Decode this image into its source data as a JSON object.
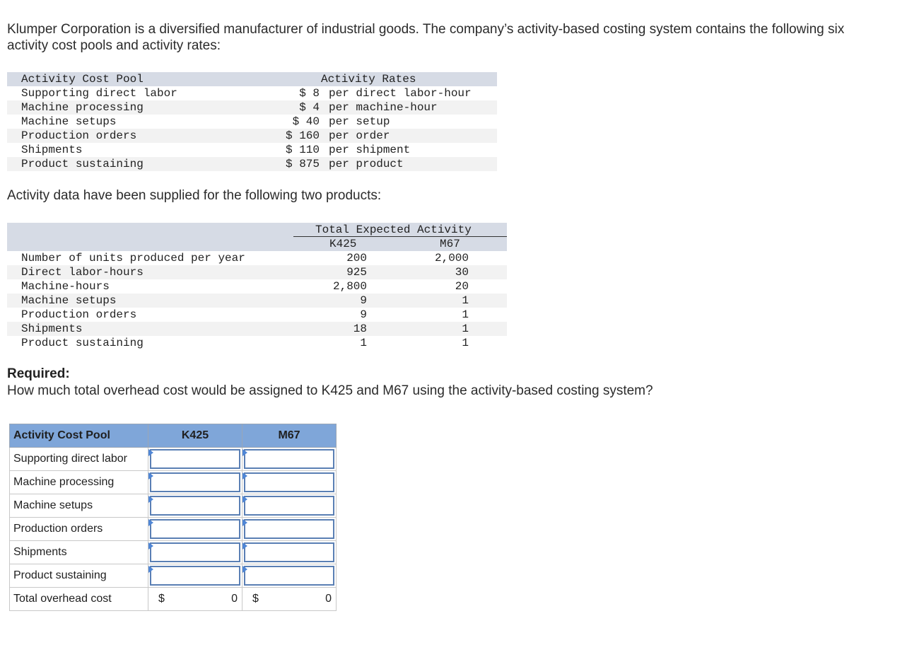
{
  "intro": "Klumper Corporation is a diversified manufacturer of industrial goods. The company’s activity-based costing system contains the following six activity cost pools and activity rates:",
  "rates_table": {
    "header_pool": "Activity Cost Pool",
    "header_rates": "Activity Rates",
    "rows": [
      {
        "pool": "Supporting direct labor",
        "amount": "$ 8",
        "unit": "per direct labor-hour"
      },
      {
        "pool": "Machine processing",
        "amount": "$ 4",
        "unit": "per machine-hour"
      },
      {
        "pool": "Machine setups",
        "amount": "$ 40",
        "unit": "per setup"
      },
      {
        "pool": "Production orders",
        "amount": "$ 160",
        "unit": "per order"
      },
      {
        "pool": "Shipments",
        "amount": "$ 110",
        "unit": "per shipment"
      },
      {
        "pool": "Product sustaining",
        "amount": "$ 875",
        "unit": "per product"
      }
    ]
  },
  "activity_intro": "Activity data have been supplied for the following two products:",
  "activity_table": {
    "group_header": "Total Expected Activity",
    "col_k": "K425",
    "col_m": "M67",
    "rows": [
      {
        "label": "Number of units produced per year",
        "k": "200",
        "m": "2,000"
      },
      {
        "label": "Direct labor-hours",
        "k": "925",
        "m": "30"
      },
      {
        "label": "Machine-hours",
        "k": "2,800",
        "m": "20"
      },
      {
        "label": "Machine setups",
        "k": "9",
        "m": "1"
      },
      {
        "label": "Production orders",
        "k": "9",
        "m": "1"
      },
      {
        "label": "Shipments",
        "k": "18",
        "m": "1"
      },
      {
        "label": "Product sustaining",
        "k": "1",
        "m": "1"
      }
    ]
  },
  "required_title": "Required:",
  "required_text": "How much total overhead cost would be assigned to K425 and M67 using the activity-based costing system?",
  "answer_table": {
    "header_pool": "Activity Cost Pool",
    "header_k": "K425",
    "header_m": "M67",
    "rows": [
      {
        "label": "Supporting direct labor",
        "k_value": "",
        "m_value": ""
      },
      {
        "label": "Machine processing",
        "k_value": "",
        "m_value": ""
      },
      {
        "label": "Machine setups",
        "k_value": "",
        "m_value": ""
      },
      {
        "label": "Production orders",
        "k_value": "",
        "m_value": ""
      },
      {
        "label": "Shipments",
        "k_value": "",
        "m_value": ""
      },
      {
        "label": "Product sustaining",
        "k_value": "",
        "m_value": ""
      }
    ],
    "total_label": "Total overhead cost",
    "total_currency": "$",
    "total_k": "0",
    "total_m": "0"
  }
}
